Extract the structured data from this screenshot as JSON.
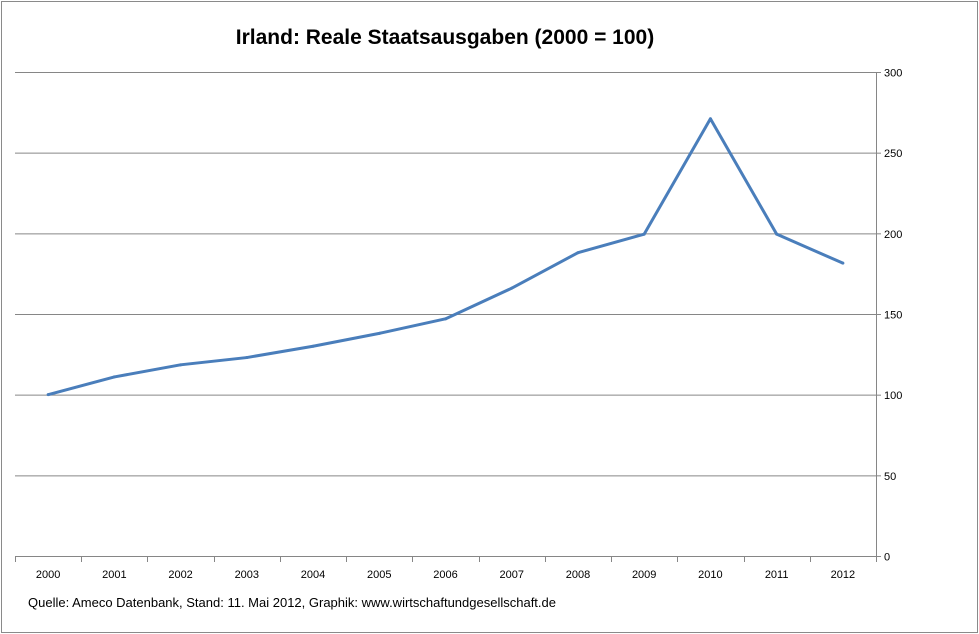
{
  "chart_data": {
    "type": "line",
    "title": "Irland: Reale Staatsausgaben (2000 = 100)",
    "categories": [
      "2000",
      "2001",
      "2002",
      "2003",
      "2004",
      "2005",
      "2006",
      "2007",
      "2008",
      "2009",
      "2010",
      "2011",
      "2012"
    ],
    "series": [
      {
        "name": "Reale Staatsausgaben",
        "values": [
          100,
          111,
          118.5,
          123,
          130,
          138,
          147,
          166,
          188,
          199.5,
          271,
          199.5,
          181.5
        ],
        "color": "#4a7ebb"
      }
    ],
    "ylim": [
      0,
      300
    ],
    "yticks": [
      0,
      50,
      100,
      150,
      200,
      250,
      300
    ],
    "y_axis_position": "right",
    "grid": true,
    "source": "Quelle: Ameco Datenbank, Stand: 11. Mai 2012,  Graphik: www.wirtschaftundgesellschaft.de"
  }
}
